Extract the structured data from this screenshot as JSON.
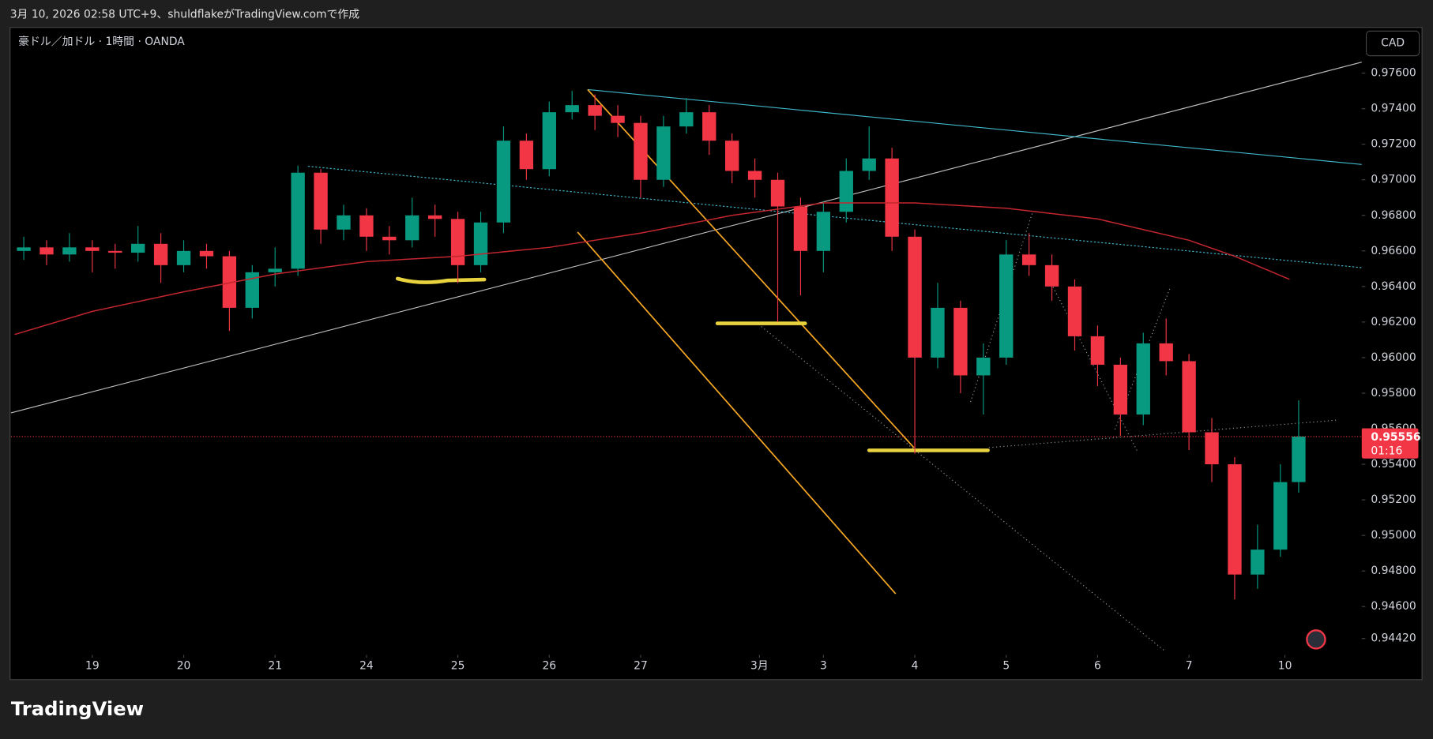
{
  "header": {
    "caption": "3月 10, 2026 02:58 UTC+9、shuldflakeがTradingView.comで作成",
    "logo": "TradingView"
  },
  "chart_data": {
    "type": "candlestick",
    "title": "豪ドル／加ドル · 1時間 · OANDA",
    "currency": "CAD",
    "up_color": "#089981",
    "down_color": "#f23645",
    "x": [
      -0.75,
      -0.5,
      -0.25,
      0,
      0.25,
      0.5,
      0.75,
      1,
      1.25,
      1.5,
      1.75,
      2,
      2.25,
      2.5,
      2.75,
      3,
      3.25,
      3.5,
      3.75,
      4,
      4.25,
      4.5,
      4.75,
      5,
      5.25,
      5.5,
      5.75,
      6,
      6.25,
      6.5,
      6.75,
      7,
      7.25,
      7.5,
      7.75,
      8,
      8.25,
      8.5,
      8.75,
      9,
      9.25,
      9.5,
      9.75,
      10,
      10.25,
      10.5,
      10.75,
      11,
      11.25,
      11.5,
      11.75,
      12,
      12.25,
      12.5,
      12.75,
      13,
      13.2
    ],
    "open": [
      0.966,
      0.9662,
      0.9658,
      0.9662,
      0.966,
      0.9659,
      0.9664,
      0.9652,
      0.966,
      0.9657,
      0.9628,
      0.9648,
      0.965,
      0.9704,
      0.9672,
      0.968,
      0.9668,
      0.9666,
      0.968,
      0.9678,
      0.9652,
      0.9676,
      0.9722,
      0.9706,
      0.9738,
      0.9742,
      0.9736,
      0.9732,
      0.97,
      0.973,
      0.9738,
      0.9722,
      0.9705,
      0.97,
      0.9685,
      0.966,
      0.9682,
      0.9705,
      0.9712,
      0.9668,
      0.96,
      0.9628,
      0.959,
      0.96,
      0.9658,
      0.9652,
      0.964,
      0.9612,
      0.9596,
      0.9568,
      0.9608,
      0.9598,
      0.9558,
      0.954,
      0.9478,
      0.9492,
      0.953
    ],
    "high": [
      0.9668,
      0.9666,
      0.967,
      0.9666,
      0.9664,
      0.9674,
      0.967,
      0.9666,
      0.9664,
      0.966,
      0.9652,
      0.9662,
      0.9708,
      0.9706,
      0.9686,
      0.9684,
      0.9674,
      0.969,
      0.9686,
      0.9682,
      0.9682,
      0.973,
      0.9726,
      0.9744,
      0.975,
      0.9748,
      0.9742,
      0.9736,
      0.9736,
      0.9746,
      0.9742,
      0.9726,
      0.9712,
      0.9704,
      0.969,
      0.9688,
      0.9712,
      0.973,
      0.9718,
      0.9672,
      0.9642,
      0.9632,
      0.9608,
      0.9666,
      0.967,
      0.9658,
      0.9644,
      0.9618,
      0.96,
      0.9614,
      0.9622,
      0.9602,
      0.9566,
      0.9544,
      0.9506,
      0.954,
      0.9576
    ],
    "low": [
      0.9655,
      0.9652,
      0.9654,
      0.9648,
      0.965,
      0.9654,
      0.9642,
      0.9648,
      0.965,
      0.9615,
      0.9622,
      0.964,
      0.9646,
      0.9664,
      0.9666,
      0.966,
      0.9658,
      0.9662,
      0.9668,
      0.9642,
      0.9648,
      0.967,
      0.97,
      0.9702,
      0.9734,
      0.9728,
      0.9724,
      0.969,
      0.9696,
      0.9726,
      0.9714,
      0.9698,
      0.969,
      0.962,
      0.9635,
      0.9648,
      0.9676,
      0.97,
      0.966,
      0.9546,
      0.9594,
      0.958,
      0.9568,
      0.9596,
      0.9646,
      0.9632,
      0.9604,
      0.9584,
      0.9556,
      0.9562,
      0.959,
      0.9548,
      0.953,
      0.9464,
      0.947,
      0.9488,
      0.9524
    ],
    "close": [
      0.9662,
      0.9658,
      0.9662,
      0.966,
      0.9659,
      0.9664,
      0.9652,
      0.966,
      0.9657,
      0.9628,
      0.9648,
      0.965,
      0.9704,
      0.9672,
      0.968,
      0.9668,
      0.9666,
      0.968,
      0.9678,
      0.9652,
      0.9676,
      0.9722,
      0.9706,
      0.9738,
      0.9742,
      0.9736,
      0.9732,
      0.97,
      0.973,
      0.9738,
      0.9722,
      0.9705,
      0.97,
      0.9685,
      0.966,
      0.9682,
      0.9705,
      0.9712,
      0.9668,
      0.96,
      0.9628,
      0.959,
      0.96,
      0.9658,
      0.9652,
      0.964,
      0.9612,
      0.9596,
      0.9568,
      0.9608,
      0.9598,
      0.9558,
      0.954,
      0.9478,
      0.9492,
      0.953,
      0.95556
    ],
    "ma": {
      "color": "#c2262f",
      "x": [
        -0.85,
        0,
        1,
        2,
        3,
        4,
        5,
        6,
        7,
        8,
        9,
        10,
        11,
        12,
        12.5,
        13.1
      ],
      "values": [
        0.9613,
        0.9626,
        0.9637,
        0.9647,
        0.9654,
        0.9657,
        0.9662,
        0.967,
        0.968,
        0.9687,
        0.9687,
        0.9684,
        0.9678,
        0.9666,
        0.9657,
        0.9644
      ]
    },
    "last_price": {
      "value": 0.95556,
      "label": "0.95556"
    },
    "countdown": "01:16",
    "xlim": [
      -0.89,
      13.89
    ],
    "ylim": [
      0.94338,
      0.97857
    ],
    "xticks": [
      {
        "value": 0,
        "label": "19"
      },
      {
        "value": 1,
        "label": "20"
      },
      {
        "value": 2,
        "label": "21"
      },
      {
        "value": 3,
        "label": "24"
      },
      {
        "value": 4,
        "label": "25"
      },
      {
        "value": 5,
        "label": "26"
      },
      {
        "value": 6,
        "label": "27"
      },
      {
        "value": 7.3,
        "label": "3月"
      },
      {
        "value": 8,
        "label": "3"
      },
      {
        "value": 9,
        "label": "4"
      },
      {
        "value": 10,
        "label": "5"
      },
      {
        "value": 11,
        "label": "6"
      },
      {
        "value": 12,
        "label": "7"
      },
      {
        "value": 13.05,
        "label": "10"
      }
    ],
    "yticks": [
      {
        "value": 0.9442,
        "label": "0.94420"
      },
      {
        "value": 0.946,
        "label": "0.94600"
      },
      {
        "value": 0.948,
        "label": "0.94800"
      },
      {
        "value": 0.95,
        "label": "0.95000"
      },
      {
        "value": 0.952,
        "label": "0.95200"
      },
      {
        "value": 0.954,
        "label": "0.95400"
      },
      {
        "value": 0.956,
        "label": "0.95600"
      },
      {
        "value": 0.958,
        "label": "0.95800"
      },
      {
        "value": 0.96,
        "label": "0.96000"
      },
      {
        "value": 0.962,
        "label": "0.96200"
      },
      {
        "value": 0.964,
        "label": "0.96400"
      },
      {
        "value": 0.966,
        "label": "0.96600"
      },
      {
        "value": 0.968,
        "label": "0.96800"
      },
      {
        "value": 0.97,
        "label": "0.97000"
      },
      {
        "value": 0.972,
        "label": "0.97200"
      },
      {
        "value": 0.974,
        "label": "0.97400"
      },
      {
        "value": 0.976,
        "label": "0.97600"
      }
    ]
  }
}
